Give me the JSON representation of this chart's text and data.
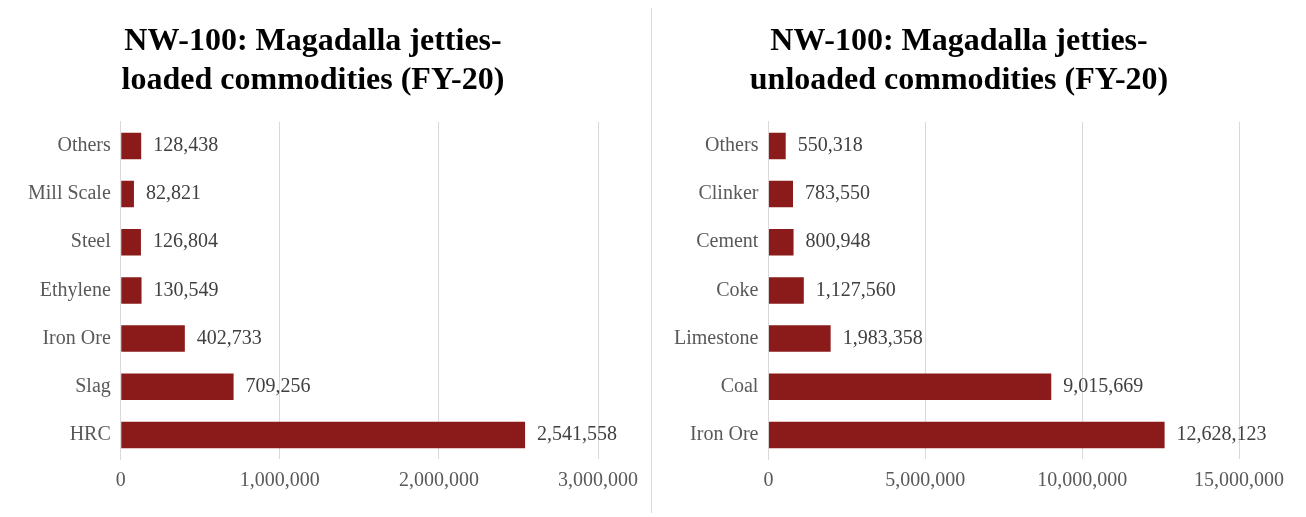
{
  "chart_data": [
    {
      "type": "bar",
      "orientation": "horizontal",
      "title": "NW-100: Magadalla jetties-loaded commodities (FY-20)",
      "categories": [
        "Others",
        "Mill Scale",
        "Steel",
        "Ethylene",
        "Iron Ore",
        "Slag",
        "HRC"
      ],
      "values": [
        128438,
        82821,
        126804,
        130549,
        402733,
        709256,
        2541558
      ],
      "color": "#8b1a1a",
      "xlim": [
        0,
        3000000
      ],
      "xticks": [
        0,
        {
          "value": 1000000,
          "label": "1,000,000"
        },
        {
          "value": 2000000,
          "label": "2,000,000"
        },
        {
          "value": 3000000,
          "label": "3,000,000"
        }
      ],
      "grid": "x",
      "value_labels": [
        "128,438",
        "82,821",
        "126,804",
        "130,549",
        "402,733",
        "709,256",
        "2,541,558"
      ]
    },
    {
      "type": "bar",
      "orientation": "horizontal",
      "title": "NW-100: Magadalla jetties-unloaded commodities (FY-20)",
      "categories": [
        "Others",
        "Clinker",
        "Cement",
        "Coke",
        "Limestone",
        "Coal",
        "Iron Ore"
      ],
      "values": [
        550318,
        783550,
        800948,
        1127560,
        1983358,
        9015669,
        12628123
      ],
      "color": "#8b1a1a",
      "xlim": [
        0,
        15000000
      ],
      "xticks": [
        0,
        {
          "value": 5000000,
          "label": "5,000,000"
        },
        {
          "value": 10000000,
          "label": "10,000,000"
        },
        {
          "value": 15000000,
          "label": "15,000,000"
        }
      ],
      "grid": "x",
      "value_labels": [
        "550,318",
        "783,550",
        "800,948",
        "1,127,560",
        "1,983,358",
        "9,015,669",
        "12,628,123"
      ]
    }
  ]
}
